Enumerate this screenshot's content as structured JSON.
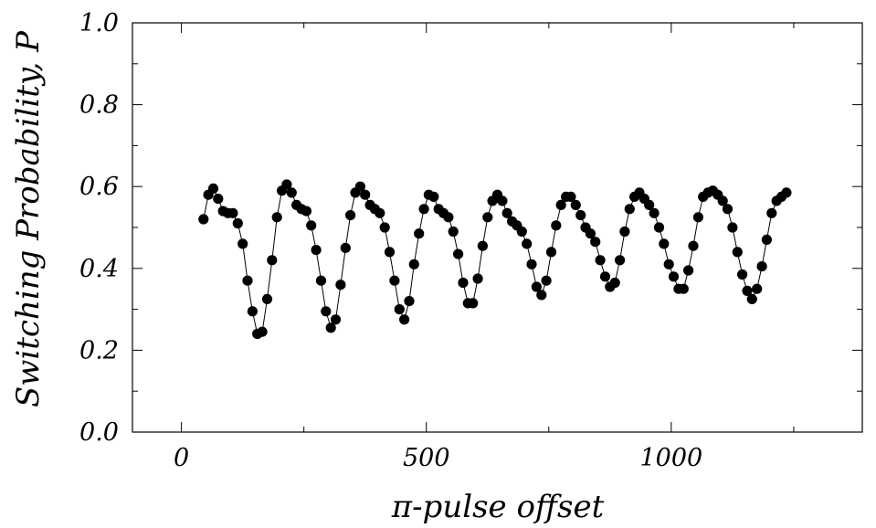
{
  "chart_data": {
    "type": "scatter",
    "title": "",
    "xlabel": "π-pulse offset",
    "ylabel": "Switching Probability, P",
    "xlim": [
      -100,
      1390
    ],
    "ylim": [
      0.0,
      1.0
    ],
    "x_ticks": [
      {
        "value": 0,
        "label": "0"
      },
      {
        "value": 500,
        "label": "500"
      },
      {
        "value": 1000,
        "label": "1000"
      }
    ],
    "y_ticks": [
      {
        "value": 0.0,
        "label": "0.0"
      },
      {
        "value": 0.2,
        "label": "0.2"
      },
      {
        "value": 0.4,
        "label": "0.4"
      },
      {
        "value": 0.6,
        "label": "0.6"
      },
      {
        "value": 0.8,
        "label": "0.8"
      },
      {
        "value": 1.0,
        "label": "1.0"
      }
    ],
    "grid": false,
    "legend": "none",
    "marker_color": "#000000",
    "line_color": "#000000",
    "series": [
      {
        "connected": true,
        "points": [
          [
            45,
            0.52
          ],
          [
            55,
            0.58
          ],
          [
            65,
            0.595
          ],
          [
            75,
            0.57
          ],
          [
            85,
            0.54
          ],
          [
            95,
            0.535
          ],
          [
            105,
            0.535
          ],
          [
            115,
            0.51
          ],
          [
            125,
            0.46
          ],
          [
            135,
            0.37
          ],
          [
            145,
            0.295
          ],
          [
            155,
            0.24
          ],
          [
            165,
            0.245
          ],
          [
            175,
            0.325
          ],
          [
            185,
            0.42
          ],
          [
            195,
            0.525
          ],
          [
            205,
            0.59
          ],
          [
            215,
            0.605
          ],
          [
            225,
            0.585
          ],
          [
            235,
            0.555
          ],
          [
            245,
            0.545
          ],
          [
            255,
            0.54
          ],
          [
            265,
            0.505
          ],
          [
            275,
            0.445
          ],
          [
            285,
            0.37
          ],
          [
            295,
            0.295
          ],
          [
            305,
            0.255
          ],
          [
            315,
            0.275
          ],
          [
            325,
            0.36
          ],
          [
            335,
            0.45
          ],
          [
            345,
            0.53
          ],
          [
            355,
            0.585
          ],
          [
            365,
            0.6
          ],
          [
            375,
            0.58
          ],
          [
            385,
            0.555
          ],
          [
            395,
            0.545
          ],
          [
            405,
            0.535
          ],
          [
            415,
            0.5
          ],
          [
            425,
            0.44
          ],
          [
            435,
            0.37
          ],
          [
            445,
            0.3
          ],
          [
            455,
            0.275
          ],
          [
            465,
            0.32
          ],
          [
            475,
            0.41
          ],
          [
            485,
            0.485
          ],
          [
            495,
            0.545
          ],
          [
            505,
            0.58
          ],
          [
            515,
            0.575
          ],
          [
            525,
            0.545
          ],
          [
            535,
            0.535
          ],
          [
            545,
            0.525
          ],
          [
            555,
            0.49
          ],
          [
            565,
            0.435
          ],
          [
            575,
            0.365
          ],
          [
            585,
            0.315
          ],
          [
            595,
            0.315
          ],
          [
            605,
            0.375
          ],
          [
            615,
            0.455
          ],
          [
            625,
            0.525
          ],
          [
            635,
            0.565
          ],
          [
            645,
            0.58
          ],
          [
            655,
            0.565
          ],
          [
            665,
            0.535
          ],
          [
            675,
            0.515
          ],
          [
            685,
            0.505
          ],
          [
            695,
            0.49
          ],
          [
            705,
            0.46
          ],
          [
            715,
            0.41
          ],
          [
            725,
            0.355
          ],
          [
            735,
            0.335
          ],
          [
            745,
            0.37
          ],
          [
            755,
            0.44
          ],
          [
            765,
            0.505
          ],
          [
            775,
            0.555
          ],
          [
            785,
            0.575
          ],
          [
            795,
            0.575
          ],
          [
            805,
            0.555
          ],
          [
            815,
            0.53
          ],
          [
            825,
            0.5
          ],
          [
            835,
            0.485
          ],
          [
            845,
            0.465
          ],
          [
            855,
            0.42
          ],
          [
            865,
            0.38
          ],
          [
            875,
            0.355
          ],
          [
            885,
            0.365
          ],
          [
            895,
            0.42
          ],
          [
            905,
            0.49
          ],
          [
            915,
            0.545
          ],
          [
            925,
            0.575
          ],
          [
            935,
            0.585
          ],
          [
            945,
            0.57
          ],
          [
            955,
            0.555
          ],
          [
            965,
            0.535
          ],
          [
            975,
            0.5
          ],
          [
            985,
            0.46
          ],
          [
            995,
            0.41
          ],
          [
            1005,
            0.38
          ],
          [
            1015,
            0.35
          ],
          [
            1025,
            0.35
          ],
          [
            1035,
            0.395
          ],
          [
            1045,
            0.455
          ],
          [
            1055,
            0.525
          ],
          [
            1065,
            0.575
          ],
          [
            1075,
            0.585
          ],
          [
            1085,
            0.59
          ],
          [
            1095,
            0.58
          ],
          [
            1105,
            0.565
          ],
          [
            1115,
            0.545
          ],
          [
            1125,
            0.5
          ],
          [
            1135,
            0.44
          ],
          [
            1145,
            0.385
          ],
          [
            1155,
            0.345
          ],
          [
            1165,
            0.325
          ],
          [
            1175,
            0.35
          ],
          [
            1185,
            0.405
          ],
          [
            1195,
            0.47
          ],
          [
            1205,
            0.535
          ],
          [
            1215,
            0.565
          ],
          [
            1225,
            0.575
          ],
          [
            1235,
            0.585
          ]
        ]
      }
    ]
  }
}
